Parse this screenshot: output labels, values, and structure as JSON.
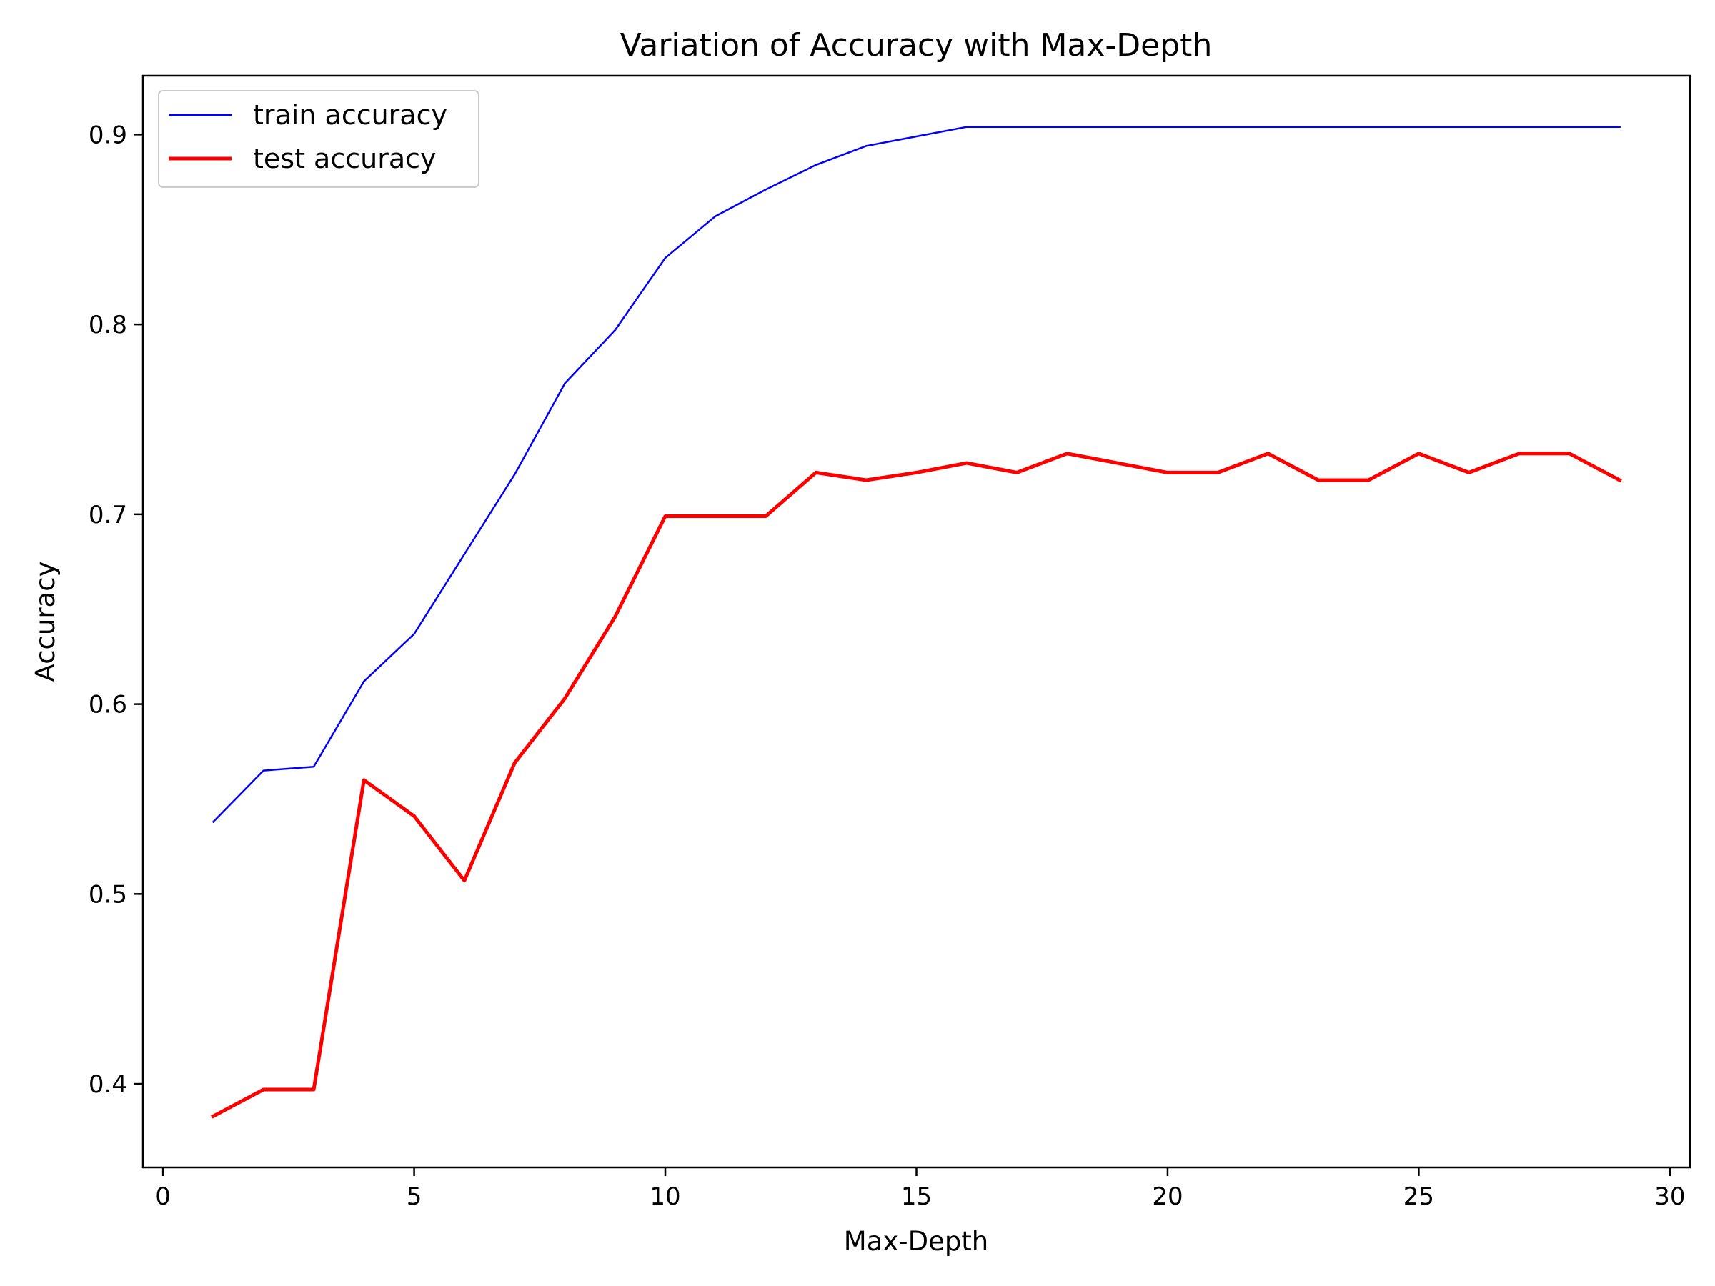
{
  "chart_data": {
    "type": "line",
    "title": "Variation of Accuracy with Max-Depth",
    "xlabel": "Max-Depth",
    "ylabel": "Accuracy",
    "xlim": [
      -0.4,
      30.4
    ],
    "ylim": [
      0.356,
      0.931
    ],
    "xticks": [
      0,
      5,
      10,
      15,
      20,
      25,
      30
    ],
    "yticks": [
      0.4,
      0.5,
      0.6,
      0.7,
      0.8,
      0.9
    ],
    "grid": false,
    "legend_position": "top-left",
    "x": [
      1,
      2,
      3,
      4,
      5,
      6,
      7,
      8,
      9,
      10,
      11,
      12,
      13,
      14,
      15,
      16,
      17,
      18,
      19,
      20,
      21,
      22,
      23,
      24,
      25,
      26,
      27,
      28,
      29
    ],
    "series": [
      {
        "name": "train accuracy",
        "color": "#0000ff",
        "values": [
          0.538,
          0.565,
          0.567,
          0.612,
          0.637,
          0.679,
          0.721,
          0.769,
          0.797,
          0.835,
          0.857,
          0.871,
          0.884,
          0.894,
          0.899,
          0.904,
          0.904,
          0.904,
          0.904,
          0.904,
          0.904,
          0.904,
          0.904,
          0.904,
          0.904,
          0.904,
          0.904,
          0.904,
          0.904
        ]
      },
      {
        "name": "test accuracy",
        "color": "#ff0000",
        "values": [
          0.383,
          0.397,
          0.397,
          0.56,
          0.541,
          0.507,
          0.569,
          0.603,
          0.646,
          0.699,
          0.699,
          0.699,
          0.722,
          0.718,
          0.722,
          0.727,
          0.722,
          0.732,
          0.727,
          0.722,
          0.722,
          0.732,
          0.718,
          0.718,
          0.732,
          0.722,
          0.732,
          0.732,
          0.718
        ]
      }
    ]
  }
}
